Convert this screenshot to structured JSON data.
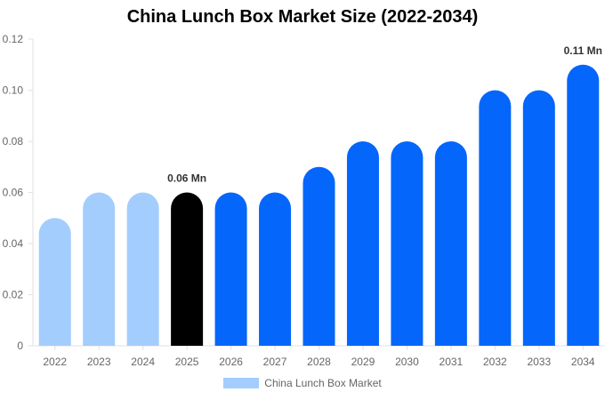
{
  "chart_data": {
    "type": "bar",
    "title": "China Lunch Box Market Size (2022-2034)",
    "xlabel": "",
    "ylabel": "",
    "ylim": [
      0,
      0.12
    ],
    "yticks": [
      "0",
      "0.02",
      "0.04",
      "0.06",
      "0.08",
      "0.10",
      "0.12"
    ],
    "grid": false,
    "legend_position": "bottom",
    "categories": [
      "2022",
      "2023",
      "2024",
      "2025",
      "2026",
      "2027",
      "2028",
      "2029",
      "2030",
      "2031",
      "2032",
      "2033",
      "2034"
    ],
    "series": [
      {
        "name": "China Lunch Box Market",
        "values": [
          0.05,
          0.06,
          0.06,
          0.06,
          0.06,
          0.06,
          0.07,
          0.08,
          0.08,
          0.08,
          0.1,
          0.1,
          0.11
        ]
      }
    ],
    "bar_colors": [
      "#a3cdfd",
      "#a3cdfd",
      "#a3cdfd",
      "#000000",
      "#0466fb",
      "#0466fb",
      "#0466fb",
      "#0466fb",
      "#0466fb",
      "#0466fb",
      "#0466fb",
      "#0466fb",
      "#0466fb"
    ],
    "legend_color": "#a3cdfd",
    "annotations": [
      {
        "category": "2025",
        "text": "0.06 Mn"
      },
      {
        "category": "2034",
        "text": "0.11 Mn"
      }
    ]
  }
}
